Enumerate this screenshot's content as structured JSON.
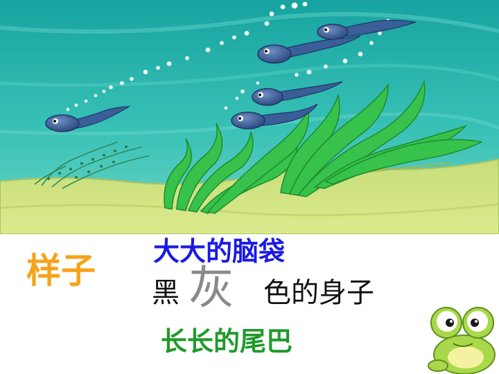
{
  "slide": {
    "topic": "样子",
    "head_line": "大大的脑袋",
    "black_word": "黑",
    "gray_word": "灰",
    "body_word": "色的身子",
    "tail_line": "长长的尾巴"
  },
  "illustration": {
    "scene": "underwater-pond-scene",
    "character_icon": "frog-icon"
  },
  "colors": {
    "topic": "#f5a31a",
    "head_line": "#1a1ae6",
    "gray_word": "#8a8a8a",
    "tail_line": "#1f9a2a",
    "water": "#1fb0a9",
    "sand": "#cfe27a",
    "tadpole": "#3a5e98"
  }
}
